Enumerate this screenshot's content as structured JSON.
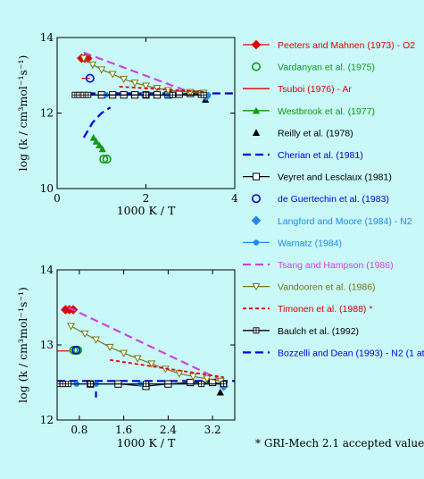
{
  "colors": {
    "background": "#c8f8f8",
    "axes": "#000000"
  },
  "legend": {
    "entries": [
      {
        "label": "Peeters and Mahnen (1973) - O2",
        "color": "#e00000",
        "dash": "solid",
        "marker": "diamond-filled"
      },
      {
        "label": "Vardanyan et al. (1975)",
        "color": "#119911",
        "dash": "none",
        "marker": "circle-open"
      },
      {
        "label": "Tsuboi (1976) - Ar",
        "color": "#dd0000",
        "dash": "solid",
        "marker": "none"
      },
      {
        "label": "Westbrook et al. (1977)",
        "color": "#119911",
        "dash": "solid",
        "marker": "triangle-filled"
      },
      {
        "label": "Reilly et al. (1978)",
        "color": "#000000",
        "dash": "none",
        "marker": "triangle-filled"
      },
      {
        "label": "Cherian et al. (1981)",
        "color": "#0000cc",
        "dash": "long",
        "marker": "none"
      },
      {
        "label": "Veyret and Lesclaux (1981)",
        "color": "#000000",
        "dash": "solid",
        "marker": "square-open"
      },
      {
        "label": "de Guertechin et al. (1983)",
        "color": "#0000dd",
        "dash": "none",
        "marker": "circle-open"
      },
      {
        "label": "Langford and Moore (1984) - N2",
        "color": "#2288ee",
        "dash": "none",
        "marker": "diamond-filled"
      },
      {
        "label": "Warnatz (1984)",
        "color": "#2288ee",
        "dash": "solid",
        "marker": "dot-filled"
      },
      {
        "label": "Tsang and Hampson (1986)",
        "color": "#cc44dd",
        "dash": "long",
        "marker": "none"
      },
      {
        "label": "Vandooren et al. (1986)",
        "color": "#777711",
        "dash": "solid",
        "marker": "triangle-down-open"
      },
      {
        "label": "Timonen et al. (1988)  *",
        "color": "#dd0000",
        "dash": "short",
        "marker": "none"
      },
      {
        "label": "Baulch et al. (1992)",
        "color": "#000000",
        "dash": "solid",
        "marker": "square-cross"
      },
      {
        "label": "Bozzelli and Dean (1993) - N2 (1 atm)",
        "color": "#0000dd",
        "dash": "long",
        "marker": "none"
      }
    ]
  },
  "footnote": "* GRI-Mech 2.1 accepted value",
  "chart_data": [
    {
      "type": "scatter",
      "xlabel": "1000 K / T",
      "ylabel": "log (k / cm³mol⁻¹s⁻¹)",
      "xlim": [
        0,
        4
      ],
      "ylim": [
        10,
        14
      ],
      "xticks": [
        "0",
        "2",
        "4"
      ],
      "yticks": [
        "10",
        "12",
        "14"
      ],
      "series": [
        {
          "name": "Peeters and Mahnen (1973) - O2",
          "points": [
            [
              0.55,
              13.45
            ],
            [
              0.62,
              13.45
            ],
            [
              0.69,
              13.45
            ]
          ]
        },
        {
          "name": "Vardanyan et al. (1975)",
          "points": [
            [
              1.05,
              10.78
            ],
            [
              1.12,
              10.78
            ]
          ]
        },
        {
          "name": "Tsuboi (1976) - Ar",
          "points": [
            [
              0.55,
              12.92
            ],
            [
              0.74,
              12.92
            ]
          ]
        },
        {
          "name": "Westbrook et al. (1977)",
          "points": [
            [
              0.82,
              11.35
            ],
            [
              0.88,
              11.25
            ],
            [
              0.95,
              11.15
            ],
            [
              1.02,
              11.05
            ]
          ]
        },
        {
          "name": "Reilly et al. (1978)",
          "points": [
            [
              3.34,
              12.36
            ]
          ]
        },
        {
          "name": "Cherian et al. (1981)",
          "points": [
            [
              0.4,
              12.52
            ],
            [
              4.0,
              12.52
            ]
          ]
        },
        {
          "name": "Veyret and Lesclaux (1981)",
          "points": [
            [
              1.0,
              12.48
            ],
            [
              1.25,
              12.48
            ],
            [
              1.5,
              12.48
            ],
            [
              1.75,
              12.48
            ],
            [
              2.0,
              12.48
            ],
            [
              2.25,
              12.48
            ],
            [
              2.5,
              12.48
            ],
            [
              2.75,
              12.5
            ],
            [
              3.0,
              12.52
            ],
            [
              3.25,
              12.5
            ]
          ]
        },
        {
          "name": "de Guertechin et al. (1983)",
          "points": [
            [
              0.74,
              12.92
            ]
          ]
        },
        {
          "name": "Langford and Moore (1984) - N2",
          "points": [
            [
              3.36,
              12.44
            ]
          ]
        },
        {
          "name": "Warnatz (1984)",
          "points": [
            [
              0.4,
              12.48
            ],
            [
              1.1,
              12.48
            ],
            [
              1.95,
              12.48
            ],
            [
              2.5,
              12.48
            ],
            [
              3.4,
              12.48
            ]
          ]
        },
        {
          "name": "Tsang and Hampson (1986)",
          "points": [
            [
              0.6,
              13.6
            ],
            [
              3.0,
              12.55
            ]
          ]
        },
        {
          "name": "Vandooren et al. (1986)",
          "points": [
            [
              0.6,
              13.45
            ],
            [
              0.8,
              13.28
            ],
            [
              1.0,
              13.15
            ],
            [
              1.25,
              13.03
            ],
            [
              1.5,
              12.9
            ],
            [
              1.75,
              12.8
            ],
            [
              2.0,
              12.72
            ],
            [
              2.25,
              12.66
            ],
            [
              2.5,
              12.6
            ],
            [
              3.0,
              12.55
            ],
            [
              3.3,
              12.53
            ]
          ]
        },
        {
          "name": "Timonen et al. (1988)  *",
          "points": [
            [
              1.4,
              12.7
            ],
            [
              3.3,
              12.56
            ]
          ]
        },
        {
          "name": "Baulch et al. (1992)",
          "points": [
            [
              0.4,
              12.48
            ],
            [
              0.5,
              12.48
            ],
            [
              0.6,
              12.48
            ],
            [
              0.7,
              12.48
            ],
            [
              2.0,
              12.48
            ],
            [
              2.6,
              12.48
            ],
            [
              3.3,
              12.48
            ]
          ]
        },
        {
          "name": "Bozzelli and Dean (1993) - N2 (1 atm)",
          "points": [
            [
              0.6,
              11.35
            ],
            [
              0.8,
              11.75
            ],
            [
              1.0,
              12.0
            ],
            [
              1.2,
              12.15
            ]
          ]
        }
      ]
    },
    {
      "type": "scatter",
      "xlabel": "1000 K / T",
      "ylabel": "log (k / cm³mol⁻¹s⁻¹)",
      "xlim": [
        0.4,
        3.6
      ],
      "ylim": [
        12,
        14
      ],
      "xticks": [
        "0.8",
        "1.6",
        "2.4",
        "3.2"
      ],
      "yticks": [
        "12",
        "13",
        "14"
      ],
      "series": [
        {
          "name": "Peeters and Mahnen (1973) - O2",
          "points": [
            [
              0.55,
              13.47
            ],
            [
              0.62,
              13.47
            ],
            [
              0.69,
              13.47
            ]
          ]
        },
        {
          "name": "Vardanyan et al. (1975)",
          "points": [
            [
              0.7,
              12.93
            ],
            [
              0.77,
              12.93
            ]
          ]
        },
        {
          "name": "Tsuboi (1976) - Ar",
          "points": [
            [
              0.38,
              12.92
            ],
            [
              0.62,
              12.92
            ]
          ]
        },
        {
          "name": "Reilly et al. (1978)",
          "points": [
            [
              3.34,
              12.37
            ]
          ]
        },
        {
          "name": "Cherian et al. (1981)",
          "points": [
            [
              0.4,
              12.52
            ],
            [
              3.6,
              12.52
            ]
          ]
        },
        {
          "name": "Veyret and Lesclaux (1981)",
          "points": [
            [
              1.0,
              12.48
            ],
            [
              1.5,
              12.48
            ],
            [
              2.0,
              12.45
            ],
            [
              2.4,
              12.48
            ],
            [
              2.8,
              12.5
            ],
            [
              3.2,
              12.5
            ],
            [
              3.4,
              12.48
            ]
          ]
        },
        {
          "name": "de Guertechin et al. (1983)",
          "points": [
            [
              0.74,
              12.93
            ]
          ]
        },
        {
          "name": "Langford and Moore (1984) - N2",
          "points": [
            [
              3.4,
              12.45
            ]
          ]
        },
        {
          "name": "Warnatz (1984)",
          "points": [
            [
              0.4,
              12.48
            ],
            [
              0.55,
              12.48
            ],
            [
              0.75,
              12.48
            ],
            [
              1.1,
              12.48
            ],
            [
              1.9,
              12.48
            ],
            [
              3.4,
              12.48
            ]
          ]
        },
        {
          "name": "Tsang and Hampson (1986)",
          "points": [
            [
              0.6,
              13.5
            ],
            [
              3.3,
              12.55
            ]
          ]
        },
        {
          "name": "Vandooren et al. (1986)",
          "points": [
            [
              0.65,
              13.25
            ],
            [
              0.9,
              13.15
            ],
            [
              1.1,
              13.07
            ],
            [
              1.35,
              12.97
            ],
            [
              1.6,
              12.89
            ],
            [
              1.85,
              12.82
            ],
            [
              2.1,
              12.75
            ],
            [
              2.35,
              12.68
            ],
            [
              2.6,
              12.62
            ],
            [
              2.85,
              12.58
            ],
            [
              3.1,
              12.55
            ],
            [
              3.35,
              12.52
            ]
          ]
        },
        {
          "name": "Timonen et al. (1988)  *",
          "points": [
            [
              1.35,
              12.8
            ],
            [
              3.4,
              12.57
            ]
          ]
        },
        {
          "name": "Baulch et al. (1992)",
          "points": [
            [
              0.4,
              12.48
            ],
            [
              0.5,
              12.48
            ],
            [
              0.6,
              12.48
            ],
            [
              1.0,
              12.48
            ],
            [
              2.0,
              12.48
            ],
            [
              3.0,
              12.48
            ],
            [
              3.4,
              12.48
            ]
          ]
        },
        {
          "name": "Bozzelli and Dean (1993) - N2 (1 atm)",
          "points": [
            [
              1.1,
              12.3
            ],
            [
              1.1,
              12.38
            ]
          ]
        }
      ]
    }
  ]
}
